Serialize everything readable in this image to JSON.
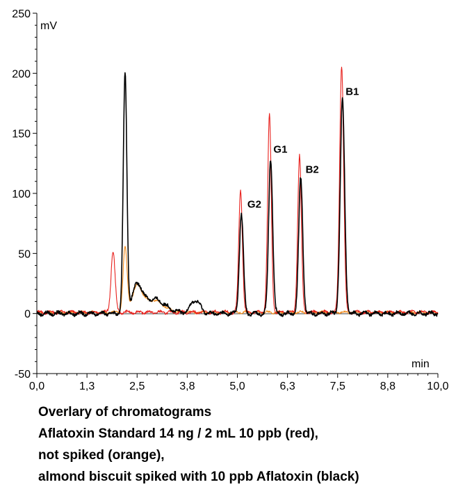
{
  "chart_data": {
    "type": "line",
    "title": "",
    "xlabel": "min",
    "ylabel": "mV",
    "xlim": [
      0,
      10
    ],
    "ylim": [
      -50,
      250
    ],
    "x_ticks": [
      "0,0",
      "1,3",
      "2,5",
      "3,8",
      "5,0",
      "6,3",
      "7,5",
      "8,8",
      "10,0"
    ],
    "x_tick_values": [
      0,
      1.25,
      2.5,
      3.75,
      5.0,
      6.25,
      7.5,
      8.75,
      10.0
    ],
    "y_ticks": [
      "-50",
      "0",
      "50",
      "100",
      "150",
      "200",
      "250"
    ],
    "y_tick_values": [
      -50,
      0,
      50,
      100,
      150,
      200,
      250
    ],
    "grid": false,
    "series": [
      {
        "color": "#e8201c",
        "baseline": 1,
        "peaks": [
          {
            "rt": 1.9,
            "height": 51,
            "width": 0.05
          },
          {
            "rt": 5.08,
            "height": 102,
            "width": 0.045
          },
          {
            "rt": 5.8,
            "height": 164,
            "width": 0.045
          },
          {
            "rt": 6.55,
            "height": 131,
            "width": 0.045
          },
          {
            "rt": 7.6,
            "height": 206,
            "width": 0.05
          }
        ],
        "noise": 2
      },
      {
        "color": "#f08a1c",
        "baseline": 1,
        "peaks": [
          {
            "rt": 2.2,
            "height": 53,
            "width": 0.05
          },
          {
            "rt": 2.5,
            "height": 20,
            "width": 0.12
          },
          {
            "rt": 2.9,
            "height": 10,
            "width": 0.25
          }
        ],
        "noise": 1.5
      },
      {
        "color": "#000000",
        "baseline": 0,
        "peaks": [
          {
            "rt": 2.2,
            "height": 199,
            "width": 0.045
          },
          {
            "rt": 2.5,
            "height": 20,
            "width": 0.12
          },
          {
            "rt": 2.9,
            "height": 12,
            "width": 0.3
          },
          {
            "rt": 3.95,
            "height": 11,
            "width": 0.12
          },
          {
            "rt": 5.1,
            "height": 83,
            "width": 0.05
          },
          {
            "rt": 5.83,
            "height": 129,
            "width": 0.05
          },
          {
            "rt": 6.58,
            "height": 113,
            "width": 0.05
          },
          {
            "rt": 7.62,
            "height": 178,
            "width": 0.055
          }
        ],
        "noise": 2.5
      }
    ],
    "annotations": [
      {
        "text": "G2",
        "x": 5.25,
        "y": 88
      },
      {
        "text": "G1",
        "x": 5.9,
        "y": 134
      },
      {
        "text": "B2",
        "x": 6.7,
        "y": 117
      },
      {
        "text": "B1",
        "x": 7.7,
        "y": 182
      }
    ]
  },
  "caption": {
    "line1": "Overlary of chromatograms",
    "line2": "Aflatoxin Standard 14 ng / 2 mL 10 ppb (red),",
    "line3": "not spiked (orange),",
    "line4": "almond biscuit spiked with 10 ppb Aflatoxin (black)"
  }
}
